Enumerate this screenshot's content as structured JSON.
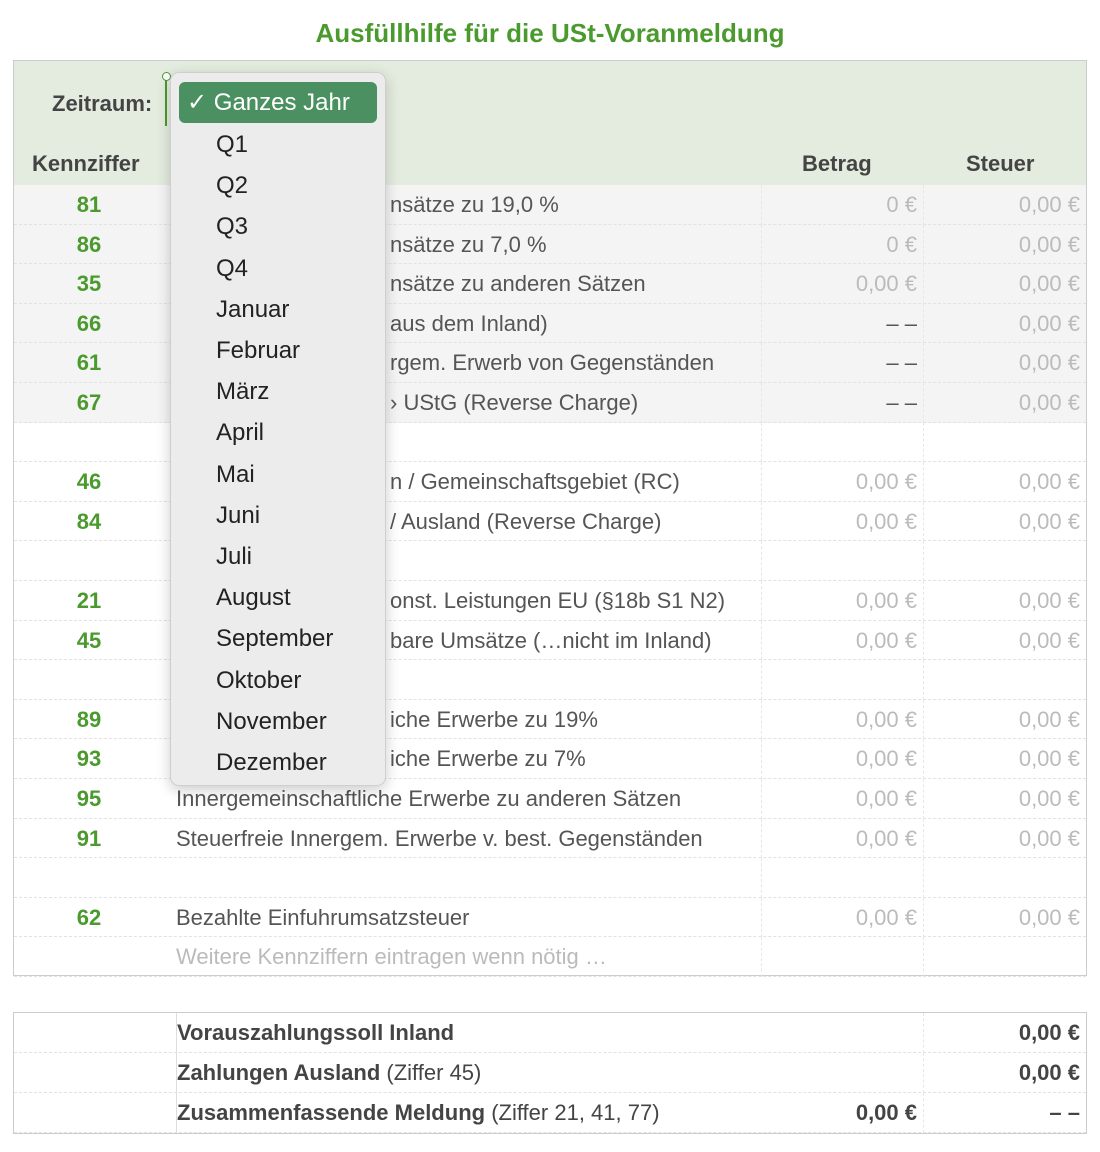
{
  "title": "Ausfüllhilfe für die USt-Voranmeldung",
  "header": {
    "zeitraum_label": "Zeitraum:",
    "kennziffer": "Kennziffer",
    "betrag": "Betrag",
    "steuer": "Steuer"
  },
  "rows": [
    {
      "k": "81",
      "label": "nsätze zu 19,0 %",
      "betrag": "0 €",
      "steuer": "0,00 €"
    },
    {
      "k": "86",
      "label": "nsätze zu 7,0 %",
      "betrag": "0 €",
      "steuer": "0,00 €"
    },
    {
      "k": "35",
      "label": "nsätze zu anderen Sätzen",
      "betrag": "0,00 €",
      "steuer": "0,00 €"
    },
    {
      "k": "66",
      "label": "aus dem Inland)",
      "betrag": "– –",
      "steuer": "0,00 €"
    },
    {
      "k": "61",
      "label": "rgem. Erwerb von Gegenständen",
      "betrag": "– –",
      "steuer": "0,00 €"
    },
    {
      "k": "67",
      "label": "› UStG (Reverse Charge)",
      "betrag": "– –",
      "steuer": "0,00 €"
    },
    {
      "k": "",
      "label": "",
      "betrag": "",
      "steuer": ""
    },
    {
      "k": "46",
      "label": "n / Gemeinschaftsgebiet (RC)",
      "betrag": "0,00 €",
      "steuer": "0,00 €"
    },
    {
      "k": "84",
      "label": "/ Ausland (Reverse Charge)",
      "betrag": "0,00 €",
      "steuer": "0,00 €"
    },
    {
      "k": "",
      "label": "",
      "betrag": "",
      "steuer": ""
    },
    {
      "k": "21",
      "label": "onst. Leistungen EU (§18b S1 N2)",
      "betrag": "0,00 €",
      "steuer": "0,00 €"
    },
    {
      "k": "45",
      "label": "bare Umsätze (…nicht im Inland)",
      "betrag": "0,00 €",
      "steuer": "0,00 €"
    },
    {
      "k": "",
      "label": "",
      "betrag": "",
      "steuer": ""
    },
    {
      "k": "89",
      "label": "iche Erwerbe zu 19%",
      "betrag": "0,00 €",
      "steuer": "0,00 €"
    },
    {
      "k": "93",
      "label": "iche Erwerbe zu 7%",
      "betrag": "0,00 €",
      "steuer": "0,00 €"
    },
    {
      "k": "95",
      "label": "Innergemeinschaftliche Erwerbe zu anderen Sätzen",
      "betrag": "0,00 €",
      "steuer": "0,00 €"
    },
    {
      "k": "91",
      "label": "Steuerfreie Innergem. Erwerbe v. best. Gegenständen",
      "betrag": "0,00 €",
      "steuer": "0,00 €"
    },
    {
      "k": "",
      "label": "",
      "betrag": "",
      "steuer": ""
    },
    {
      "k": "62",
      "label": "Bezahlte Einfuhrumsatzsteuer",
      "betrag": "0,00 €",
      "steuer": "0,00 €"
    },
    {
      "k": "",
      "label": "Weitere Kennziffern eintragen wenn nötig …",
      "betrag": "",
      "steuer": ""
    }
  ],
  "summary": [
    {
      "bold": "Vorauszahlungssoll Inland",
      "rest": "",
      "betrag": "",
      "steuer": "0,00 €"
    },
    {
      "bold": "Zahlungen Ausland",
      "rest": " (Ziffer 45)",
      "betrag": "",
      "steuer": "0,00 €"
    },
    {
      "bold": "Zusammenfassende Meldung",
      "rest": " (Ziffer 21, 41, 77)",
      "betrag": "0,00 €",
      "steuer": "– –"
    }
  ],
  "dropdown": {
    "selected": "✓ Ganzes Jahr",
    "options": [
      "Q1",
      "Q2",
      "Q3",
      "Q4",
      "Januar",
      "Februar",
      "März",
      "April",
      "Mai",
      "Juni",
      "Juli",
      "August",
      "September",
      "Oktober",
      "November",
      "Dezember"
    ]
  },
  "colors": {
    "accent": "#4a9a2e",
    "selected": "#4a9060"
  }
}
